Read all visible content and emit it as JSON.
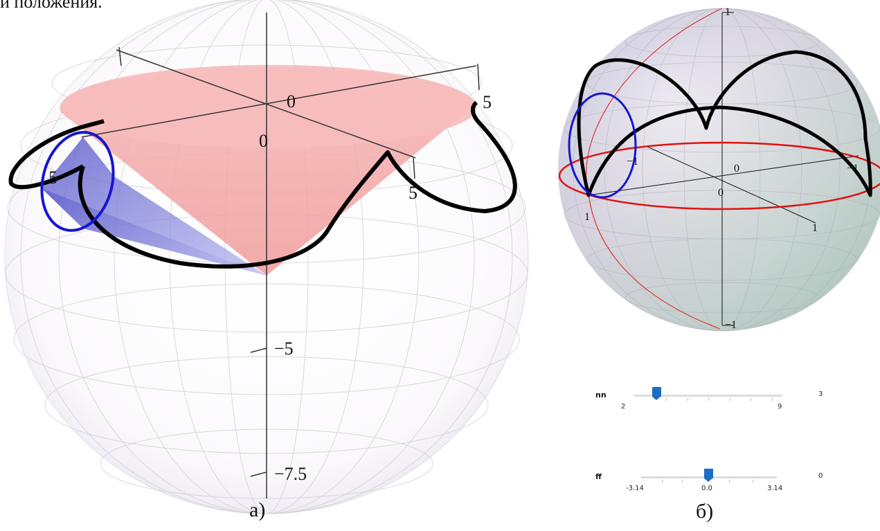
{
  "header": {
    "caption_fragment": "и положения."
  },
  "panel_a": {
    "caption": "а)",
    "axis_labels": {
      "origin_top": "0",
      "origin_mid": "0",
      "right_5": "5",
      "left_5": "5",
      "right_lower_5": "5",
      "minus5": "−5",
      "minus7_5": "−7.5"
    }
  },
  "panel_b": {
    "caption": "б)",
    "axis_labels": {
      "top": "1",
      "bottom": "−1",
      "left_m1": "−1",
      "right_m1": "−1",
      "origin_0": "0",
      "origin_0b": "0",
      "front_1a": "1",
      "front_1b": "1"
    }
  },
  "sliders": [
    {
      "name": "nn",
      "min": "2",
      "max": "9",
      "value": "3",
      "fraction": 0.1429
    },
    {
      "name": "ff",
      "min": "-3.14",
      "mid": "0.0",
      "max": "3.14",
      "value": "0",
      "fraction": 0.5
    }
  ],
  "colors": {
    "cone_pink": "#f3a8a8",
    "cone_blue": "#6f6fd0",
    "curve_black": "#000000",
    "circle_blue": "#1515d0",
    "circle_red": "#e01010",
    "slider_blue": "#1a6ec2"
  }
}
